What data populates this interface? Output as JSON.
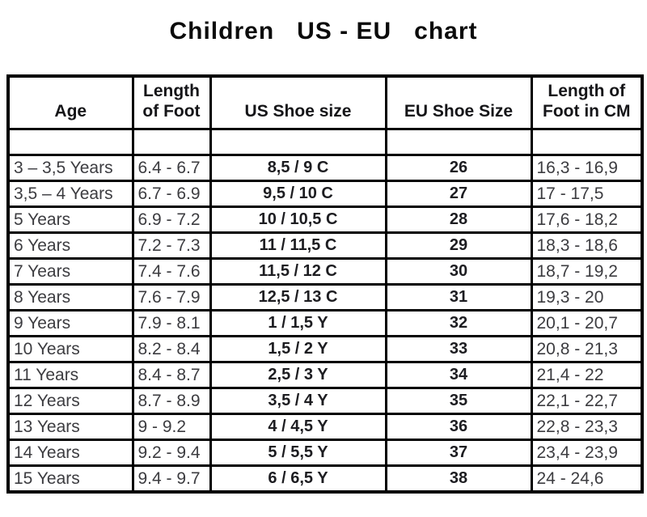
{
  "chart_data": {
    "type": "table",
    "title": "Children   US - EU   chart",
    "columns": [
      "Age",
      "Length of Foot",
      "US Shoe size",
      "EU Shoe Size",
      "Length of Foot in CM"
    ],
    "rows": [
      [
        "3 – 3,5 Years",
        "6.4 - 6.7",
        "8,5 / 9 C",
        "26",
        "16,3 - 16,9"
      ],
      [
        "3,5 – 4 Years",
        "6.7 - 6.9",
        "9,5 / 10 C",
        "27",
        "17 - 17,5"
      ],
      [
        "5 Years",
        "6.9 - 7.2",
        "10 / 10,5 C",
        "28",
        "17,6 - 18,2"
      ],
      [
        "6 Years",
        "7.2 - 7.3",
        "11 / 11,5 C",
        "29",
        "18,3 - 18,6"
      ],
      [
        "7 Years",
        "7.4 - 7.6",
        "11,5 / 12 C",
        "30",
        "18,7 - 19,2"
      ],
      [
        "8 Years",
        "7.6 - 7.9",
        "12,5 / 13 C",
        "31",
        "19,3 - 20"
      ],
      [
        "9 Years",
        "7.9 - 8.1",
        "1 / 1,5 Y",
        "32",
        "20,1 - 20,7"
      ],
      [
        "10 Years",
        "8.2 - 8.4",
        "1,5 / 2 Y",
        "33",
        "20,8 - 21,3"
      ],
      [
        "11 Years",
        "8.4 - 8.7",
        "2,5 / 3 Y",
        "34",
        "21,4 - 22"
      ],
      [
        "12 Years",
        "8.7 - 8.9",
        "3,5 / 4 Y",
        "35",
        "22,1 - 22,7"
      ],
      [
        "13 Years",
        "9 - 9.2",
        "4 / 4,5 Y",
        "36",
        "22,8 - 23,3"
      ],
      [
        "14 Years",
        "9.2 - 9.4",
        "5 / 5,5 Y",
        "37",
        "23,4 - 23,9"
      ],
      [
        "15 Years",
        "9.4 - 9.7",
        "6 / 6,5 Y",
        "38",
        "24 - 24,6"
      ]
    ],
    "layout": {
      "text_color": "#3c3c40",
      "bold_text_color": "#1d1d21",
      "border_color": "#000000",
      "background": "#ffffff",
      "bold_columns": [
        "US Shoe size",
        "EU Shoe Size"
      ]
    }
  }
}
